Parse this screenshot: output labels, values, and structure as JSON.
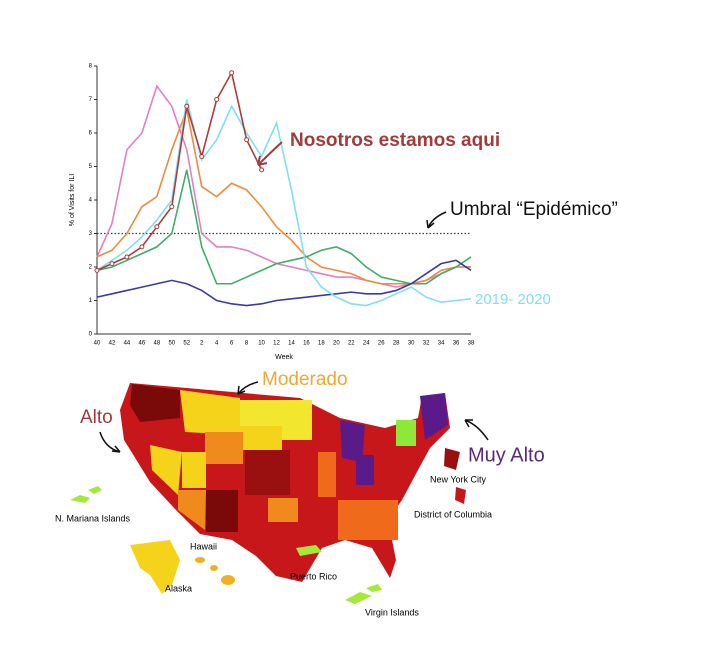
{
  "chart_data": {
    "type": "line",
    "y_label": "% of Visits for ILI",
    "x_label": "Week",
    "categories": [
      40,
      42,
      44,
      46,
      48,
      50,
      52,
      2,
      4,
      6,
      8,
      10,
      12,
      14,
      16,
      18,
      20,
      22,
      24,
      26,
      28,
      30,
      32,
      34,
      36,
      38
    ],
    "ylim": [
      0,
      8
    ],
    "yticks": [
      0,
      1,
      2,
      3,
      4,
      5,
      6,
      7,
      8
    ],
    "threshold": 3,
    "series": [
      {
        "color": "#e47fc3",
        "values": [
          2.3,
          3.3,
          5.5,
          6.0,
          7.4,
          6.8,
          5.5,
          3.0,
          2.6,
          2.6,
          2.5,
          2.3,
          2.1,
          2.0,
          1.9,
          1.8,
          1.7,
          1.7,
          1.6,
          1.5,
          1.4,
          1.5,
          1.6,
          1.8,
          2.0,
          2.0
        ]
      },
      {
        "color": "#f08a3c",
        "values": [
          2.3,
          2.5,
          3.0,
          3.8,
          4.1,
          5.5,
          6.7,
          4.4,
          4.1,
          4.5,
          4.3,
          3.8,
          3.2,
          2.8,
          2.3,
          2.0,
          1.9,
          1.8,
          1.6,
          1.5,
          1.5,
          1.5,
          1.6,
          1.9,
          2.0,
          2.0
        ]
      },
      {
        "color": "#3fae6a",
        "values": [
          1.9,
          2.0,
          2.2,
          2.4,
          2.6,
          3.0,
          4.9,
          2.6,
          1.5,
          1.5,
          1.7,
          1.9,
          2.1,
          2.2,
          2.3,
          2.5,
          2.6,
          2.4,
          2.0,
          1.7,
          1.6,
          1.5,
          1.5,
          1.8,
          2.0,
          2.3
        ]
      },
      {
        "color": "#3a3aa8",
        "values": [
          1.1,
          1.2,
          1.3,
          1.4,
          1.5,
          1.6,
          1.5,
          1.3,
          1.0,
          0.9,
          0.85,
          0.9,
          1.0,
          1.05,
          1.1,
          1.15,
          1.2,
          1.25,
          1.2,
          1.2,
          1.3,
          1.5,
          1.8,
          2.1,
          2.2,
          1.9
        ]
      },
      {
        "name": "2019- 2020",
        "color": "#7fe0ee",
        "values": [
          1.9,
          2.2,
          2.5,
          2.9,
          3.4,
          4.0,
          7.0,
          5.2,
          5.8,
          6.8,
          6.0,
          5.3,
          6.3,
          4.3,
          2.0,
          1.4,
          1.1,
          0.9,
          0.85,
          1.0,
          1.2,
          1.4,
          1.1,
          0.95,
          1.0,
          1.05
        ]
      },
      {
        "color": "#b03a3a",
        "markers": true,
        "values": [
          1.9,
          2.1,
          2.3,
          2.6,
          3.2,
          3.8,
          6.8,
          5.3,
          7.0,
          7.8,
          5.8,
          4.9,
          null,
          null,
          null,
          null,
          null,
          null,
          null,
          null,
          null,
          null,
          null,
          null,
          null,
          null
        ]
      }
    ],
    "annotations": [
      "Nosotros estamos aqui",
      "Umbral “Epidémico”"
    ]
  },
  "map": {
    "levels": [
      "Moderado",
      "Alto",
      "Muy Alto"
    ],
    "places": [
      "N. Mariana Islands",
      "Hawaii",
      "Alaska",
      "Puerto Rico",
      "Virgin Islands",
      "New York City",
      "District of Columbia"
    ]
  }
}
